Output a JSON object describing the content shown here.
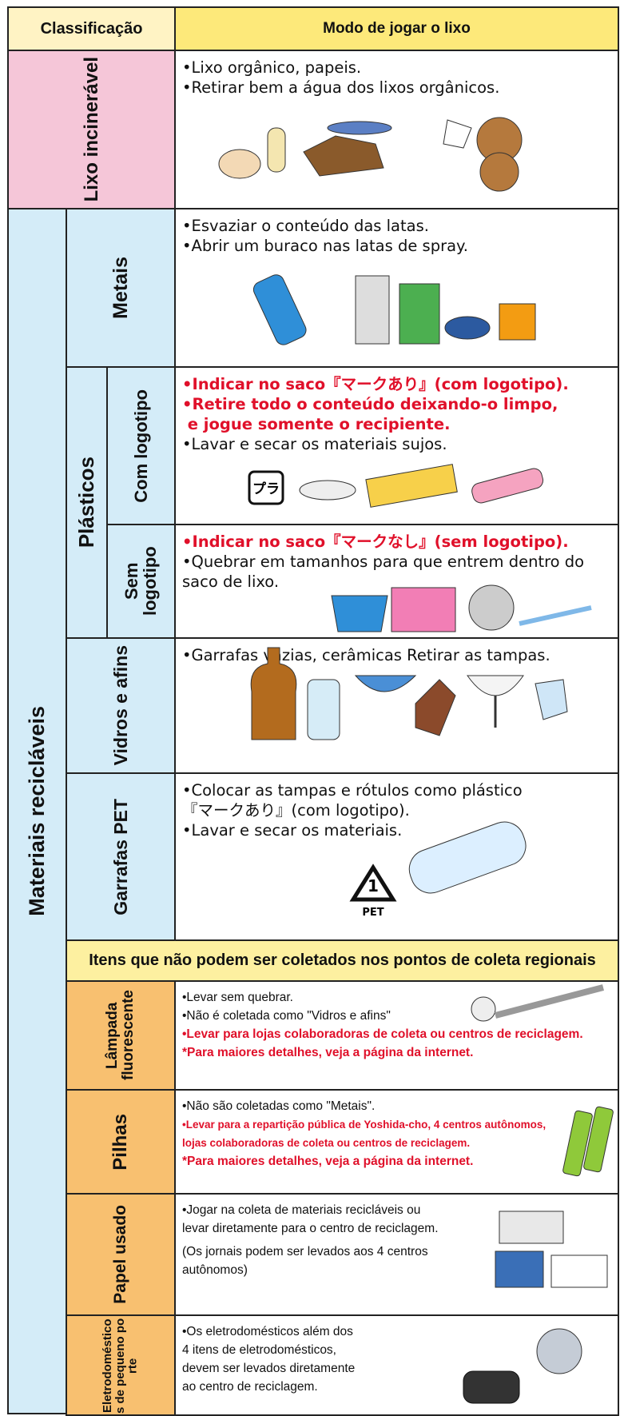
{
  "table": {
    "header": [
      "Classificação",
      "Modo de jogar o lixo"
    ],
    "recyclable_group": "Materiais recicláveis",
    "plastics_group": "Plásticos",
    "banner": "Itens que não podem ser coletados nos pontos de coleta regionais",
    "rows": [
      {
        "label": "Lixo incinerável",
        "lines": [
          "•Lixo orgânico, papeis.",
          "•Retirar bem a água dos lixos orgânicos."
        ]
      },
      {
        "label": "Metais",
        "lines": [
          "•Esvaziar o conteúdo das latas.",
          "•Abrir um buraco nas latas de spray."
        ]
      },
      {
        "label": "Com logotipo",
        "lines": [
          "•Indicar no saco『マークあり』(com logotipo).",
          "•Retire todo o conteúdo deixando-o limpo,",
          " e jogue somente o recipiente.",
          "•Lavar e secar os materiais sujos."
        ]
      },
      {
        "label": "Sem logotipo",
        "lines": [
          "•Indicar no saco『マークなし』(sem logotipo).",
          "•Quebrar em tamanhos para que entrem dentro do",
          "saco de lixo."
        ]
      },
      {
        "label": "Vidros e afins",
        "lines": [
          "•Garrafas vazias, cerâmicas Retirar as tampas."
        ]
      },
      {
        "label": "Garrafas PET",
        "lines": [
          "•Colocar as tampas e rótulos como plástico",
          "『マークあり』(com logotipo).",
          "•Lavar e secar os materiais."
        ]
      },
      {
        "label": "Lâmpada fluorescente",
        "lines": [
          "•Levar sem quebrar.",
          "•Não é coletada como \"Vidros e afins\"",
          "•Levar para lojas colaboradoras de coleta ou centros de reciclagem.",
          "*Para maiores detalhes, veja a página da internet."
        ]
      },
      {
        "label": "Pilhas",
        "lines": [
          "•Não são coletadas como \"Metais\".",
          "•Levar para a repartição pública de Yoshida-cho, 4 centros autônomos,",
          "lojas colaboradoras de coleta ou centros de reciclagem.",
          "*Para maiores detalhes, veja a página da internet."
        ]
      },
      {
        "label": "Papel usado",
        "lines": [
          "•Jogar na coleta de materiais recicláveis ou",
          "levar diretamente para o centro de reciclagem.",
          "(Os jornais podem ser levados aos 4 centros",
          "autônomos)"
        ]
      },
      {
        "label": "Eletrodomésticos de pequeno porte",
        "lines": [
          "•Os eletrodomésticos além dos",
          "4 itens de eletrodomésticos,",
          "devem ser levados diretamente",
          "ao centro de reciclagem."
        ]
      }
    ],
    "icons": {
      "pla": "プラ",
      "pet_number": "1",
      "pet_label": "PET"
    }
  }
}
